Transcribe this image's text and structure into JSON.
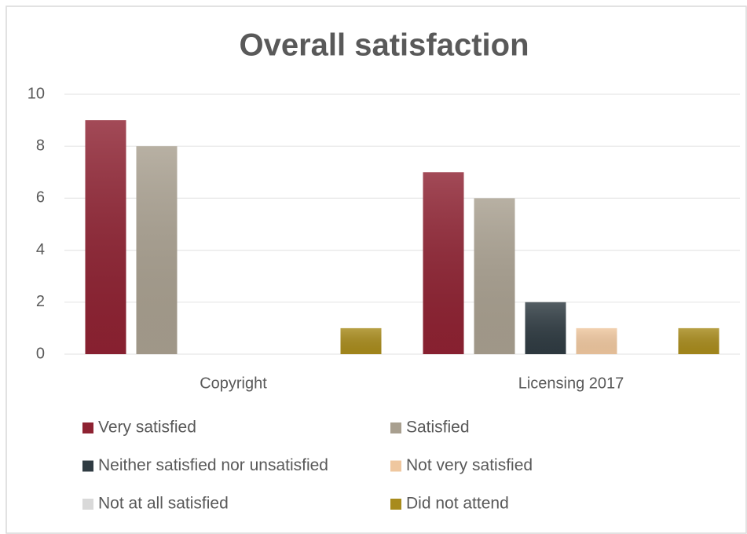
{
  "chart_data": {
    "type": "bar",
    "title": "Overall satisfaction",
    "categories": [
      "Copyright",
      "Licensing 2017"
    ],
    "series": [
      {
        "name": "Very satisfied",
        "color": "#8e2232",
        "values": [
          9,
          7
        ]
      },
      {
        "name": "Satisfied",
        "color": "#a89f8f",
        "values": [
          8,
          6
        ]
      },
      {
        "name": "Neither satisfied nor unsatisfied",
        "color": "#2f3b42",
        "values": [
          0,
          2
        ]
      },
      {
        "name": "Not very satisfied",
        "color": "#efc79f",
        "values": [
          0,
          1
        ]
      },
      {
        "name": "Not at all satisfied",
        "color": "#d9d9d9",
        "values": [
          0,
          0
        ]
      },
      {
        "name": "Did not attend",
        "color": "#a88b1c",
        "values": [
          1,
          1
        ]
      }
    ],
    "ylim": [
      0,
      10
    ],
    "yticks": [
      0,
      2,
      4,
      6,
      8,
      10
    ],
    "grid": true
  }
}
